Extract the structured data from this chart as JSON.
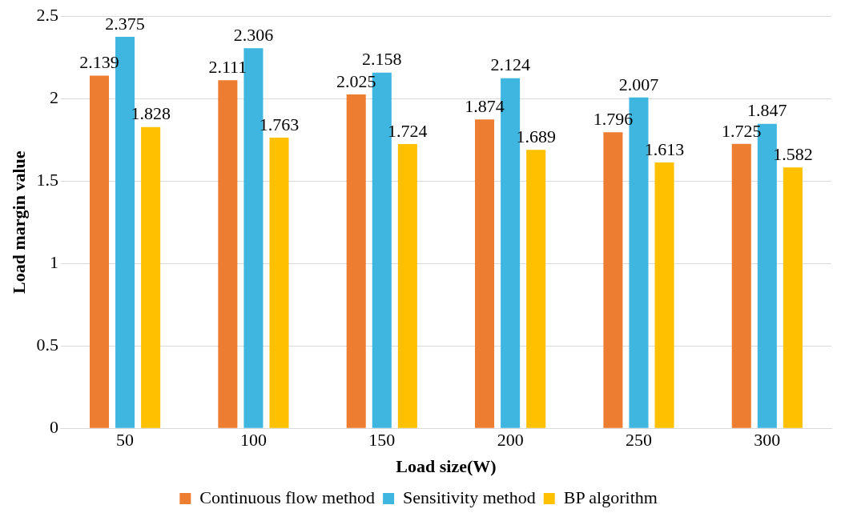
{
  "chart_data": {
    "type": "bar",
    "xlabel": "Load size(W)",
    "ylabel": "Load margin value",
    "categories": [
      "50",
      "100",
      "150",
      "200",
      "250",
      "300"
    ],
    "series": [
      {
        "name": "Continuous flow method",
        "color": "#ed7d31",
        "values": [
          2.139,
          2.111,
          2.025,
          1.874,
          1.796,
          1.725
        ]
      },
      {
        "name": "Sensitivity method",
        "color": "#3eb6e0",
        "values": [
          2.375,
          2.306,
          2.158,
          2.124,
          2.007,
          1.847
        ]
      },
      {
        "name": "BP algorithm",
        "color": "#ffc000",
        "values": [
          1.828,
          1.763,
          1.724,
          1.689,
          1.613,
          1.582
        ]
      }
    ],
    "ylim": [
      0,
      2.5
    ],
    "yticks": [
      0,
      0.5,
      1,
      1.5,
      2,
      2.5
    ],
    "grid": "y",
    "legend": "bottom",
    "data_labels": true
  }
}
